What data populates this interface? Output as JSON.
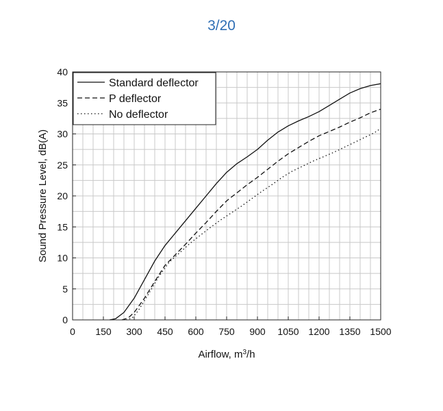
{
  "page_counter": "3/20",
  "chart_data": {
    "type": "line",
    "xlabel": "Airflow, m",
    "xlabel_sup": "3",
    "xlabel_suffix": "/h",
    "ylabel": "Sound Pressure Level, dB(A)",
    "xlim": [
      0,
      1500
    ],
    "ylim": [
      0,
      40
    ],
    "x_ticks": [
      0,
      150,
      300,
      450,
      600,
      750,
      900,
      1050,
      1200,
      1350,
      1500
    ],
    "x_tick_labels": [
      "0",
      "150",
      "300",
      "450",
      "600",
      "750",
      "900",
      "1050",
      "1200",
      "1350",
      "1500"
    ],
    "y_ticks": [
      0,
      5,
      10,
      15,
      20,
      25,
      30,
      35,
      40
    ],
    "y_tick_labels": [
      "0",
      "5",
      "10",
      "15",
      "20",
      "25",
      "30",
      "35",
      "40"
    ],
    "grid": true,
    "legend_position": "top-left",
    "series": [
      {
        "name": "Standard deflector",
        "style": "solid",
        "x": [
          180,
          210,
          250,
          300,
          350,
          400,
          450,
          500,
          550,
          600,
          650,
          700,
          750,
          800,
          850,
          900,
          950,
          1000,
          1050,
          1100,
          1150,
          1200,
          1250,
          1300,
          1350,
          1400,
          1450,
          1500
        ],
        "y": [
          0,
          0.2,
          1.2,
          3.5,
          6.5,
          9.5,
          12,
          14,
          16,
          18,
          20,
          22,
          23.8,
          25.2,
          26.3,
          27.5,
          29,
          30.3,
          31.3,
          32.1,
          32.8,
          33.6,
          34.6,
          35.6,
          36.6,
          37.3,
          37.8,
          38.1
        ]
      },
      {
        "name": "P deflector",
        "style": "dashed",
        "x": [
          240,
          270,
          300,
          350,
          400,
          450,
          500,
          550,
          600,
          650,
          700,
          750,
          800,
          850,
          900,
          950,
          1000,
          1050,
          1100,
          1150,
          1200,
          1250,
          1300,
          1350,
          1400,
          1450,
          1500
        ],
        "y": [
          0,
          0.3,
          1.2,
          3.5,
          6.2,
          8.8,
          10.5,
          12.2,
          14,
          15.7,
          17.5,
          19.2,
          20.5,
          21.8,
          23,
          24.3,
          25.6,
          26.8,
          27.8,
          28.8,
          29.7,
          30.4,
          31.1,
          31.9,
          32.6,
          33.4,
          34
        ]
      },
      {
        "name": "No deflector",
        "style": "dotted",
        "x": [
          260,
          290,
          320,
          370,
          420,
          470,
          520,
          570,
          620,
          670,
          720,
          770,
          820,
          870,
          920,
          970,
          1020,
          1070,
          1120,
          1170,
          1220,
          1270,
          1320,
          1370,
          1420,
          1470,
          1500
        ],
        "y": [
          0,
          0.3,
          1.5,
          4.2,
          7,
          9.3,
          10.8,
          12.3,
          13.6,
          14.9,
          16.1,
          17.2,
          18.3,
          19.5,
          20.7,
          21.8,
          23,
          24,
          24.8,
          25.6,
          26.3,
          27,
          27.8,
          28.6,
          29.4,
          30.2,
          30.9
        ]
      }
    ]
  }
}
